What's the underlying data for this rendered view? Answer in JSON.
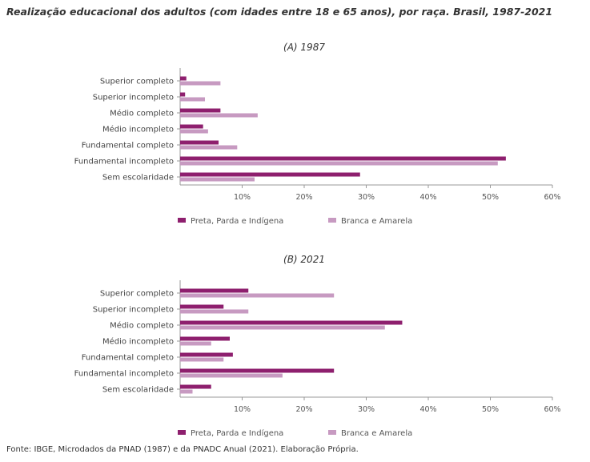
{
  "title": "Realização educacional dos adultos (com idades entre 18 e 65 anos), por raça. Brasil, 1987-2021",
  "source": "Fonte: IBGE, Microdados da PNAD (1987) e da PNADC Anual (2021). Elaboração Própria.",
  "colors": {
    "preta": "#8e1f6e",
    "branca": "#c79ac1",
    "axis": "#999999"
  },
  "chart_data": [
    {
      "type": "bar",
      "orientation": "horizontal",
      "subtitle": "(A) 1987",
      "categories": [
        "Superior completo",
        "Superior incompleto",
        "Médio completo",
        "Médio incompleto",
        "Fundamental completo",
        "Fundamental incompleto",
        "Sem escolaridade"
      ],
      "series": [
        {
          "name": "Preta, Parda e Indígena",
          "values": [
            1,
            0.8,
            6.5,
            3.7,
            6.2,
            52.5,
            29
          ]
        },
        {
          "name": "Branca e Amarela",
          "values": [
            6.5,
            4,
            12.5,
            4.5,
            9.2,
            51.2,
            12
          ]
        }
      ],
      "xlim": [
        0,
        60
      ],
      "xticks": [
        10,
        20,
        30,
        40,
        50,
        60
      ],
      "xtick_labels": [
        "10%",
        "20%",
        "30%",
        "40%",
        "50%",
        "60%"
      ],
      "legend": "bottom"
    },
    {
      "type": "bar",
      "orientation": "horizontal",
      "subtitle": "(B) 2021",
      "categories": [
        "Superior completo",
        "Superior incompleto",
        "Médio completo",
        "Médio incompleto",
        "Fundamental completo",
        "Fundamental incompleto",
        "Sem escolaridade"
      ],
      "series": [
        {
          "name": "Preta, Parda e Indígena",
          "values": [
            11,
            7,
            35.8,
            8,
            8.5,
            24.8,
            5
          ]
        },
        {
          "name": "Branca e Amarela",
          "values": [
            24.8,
            11,
            33,
            5,
            7,
            16.5,
            2
          ]
        }
      ],
      "xlim": [
        0,
        60
      ],
      "xticks": [
        10,
        20,
        30,
        40,
        50,
        60
      ],
      "xtick_labels": [
        "10%",
        "20%",
        "30%",
        "40%",
        "50%",
        "60%"
      ],
      "legend": "bottom"
    }
  ]
}
